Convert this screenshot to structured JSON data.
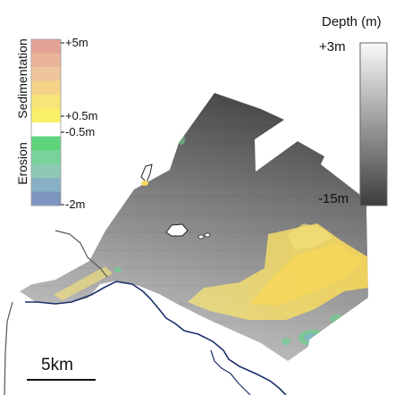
{
  "legend_change": {
    "title_up": "Sedimentation",
    "title_down": "Erosion",
    "labels": {
      "top": "+5m",
      "pos": "+0.5m",
      "neg": "-0.5m",
      "bottom": "-2m"
    },
    "colors_top_to_bottom": [
      "#e3a394",
      "#eab49a",
      "#efc59d",
      "#f5d48a",
      "#f7e57a",
      "#f9f06a",
      "#ffffff",
      "#5fd47d",
      "#78d39a",
      "#8ecab3",
      "#87b1c3",
      "#7d96bf"
    ]
  },
  "legend_depth": {
    "title": "Depth (m)",
    "max_label": "+3m",
    "min_label": "-15m",
    "color_top": "#fafafa",
    "color_bottom": "#3c3c3c"
  },
  "scale_bar": {
    "label": "5km"
  },
  "colors": {
    "coastline": "#1b2f6b",
    "river": "#555555",
    "survey_dark": "#4a4a4a",
    "survey_mid": "#8a8a8a",
    "survey_light": "#c6c6c6",
    "sediment": "#f6d75a",
    "erosion": "#6fcf8e"
  }
}
